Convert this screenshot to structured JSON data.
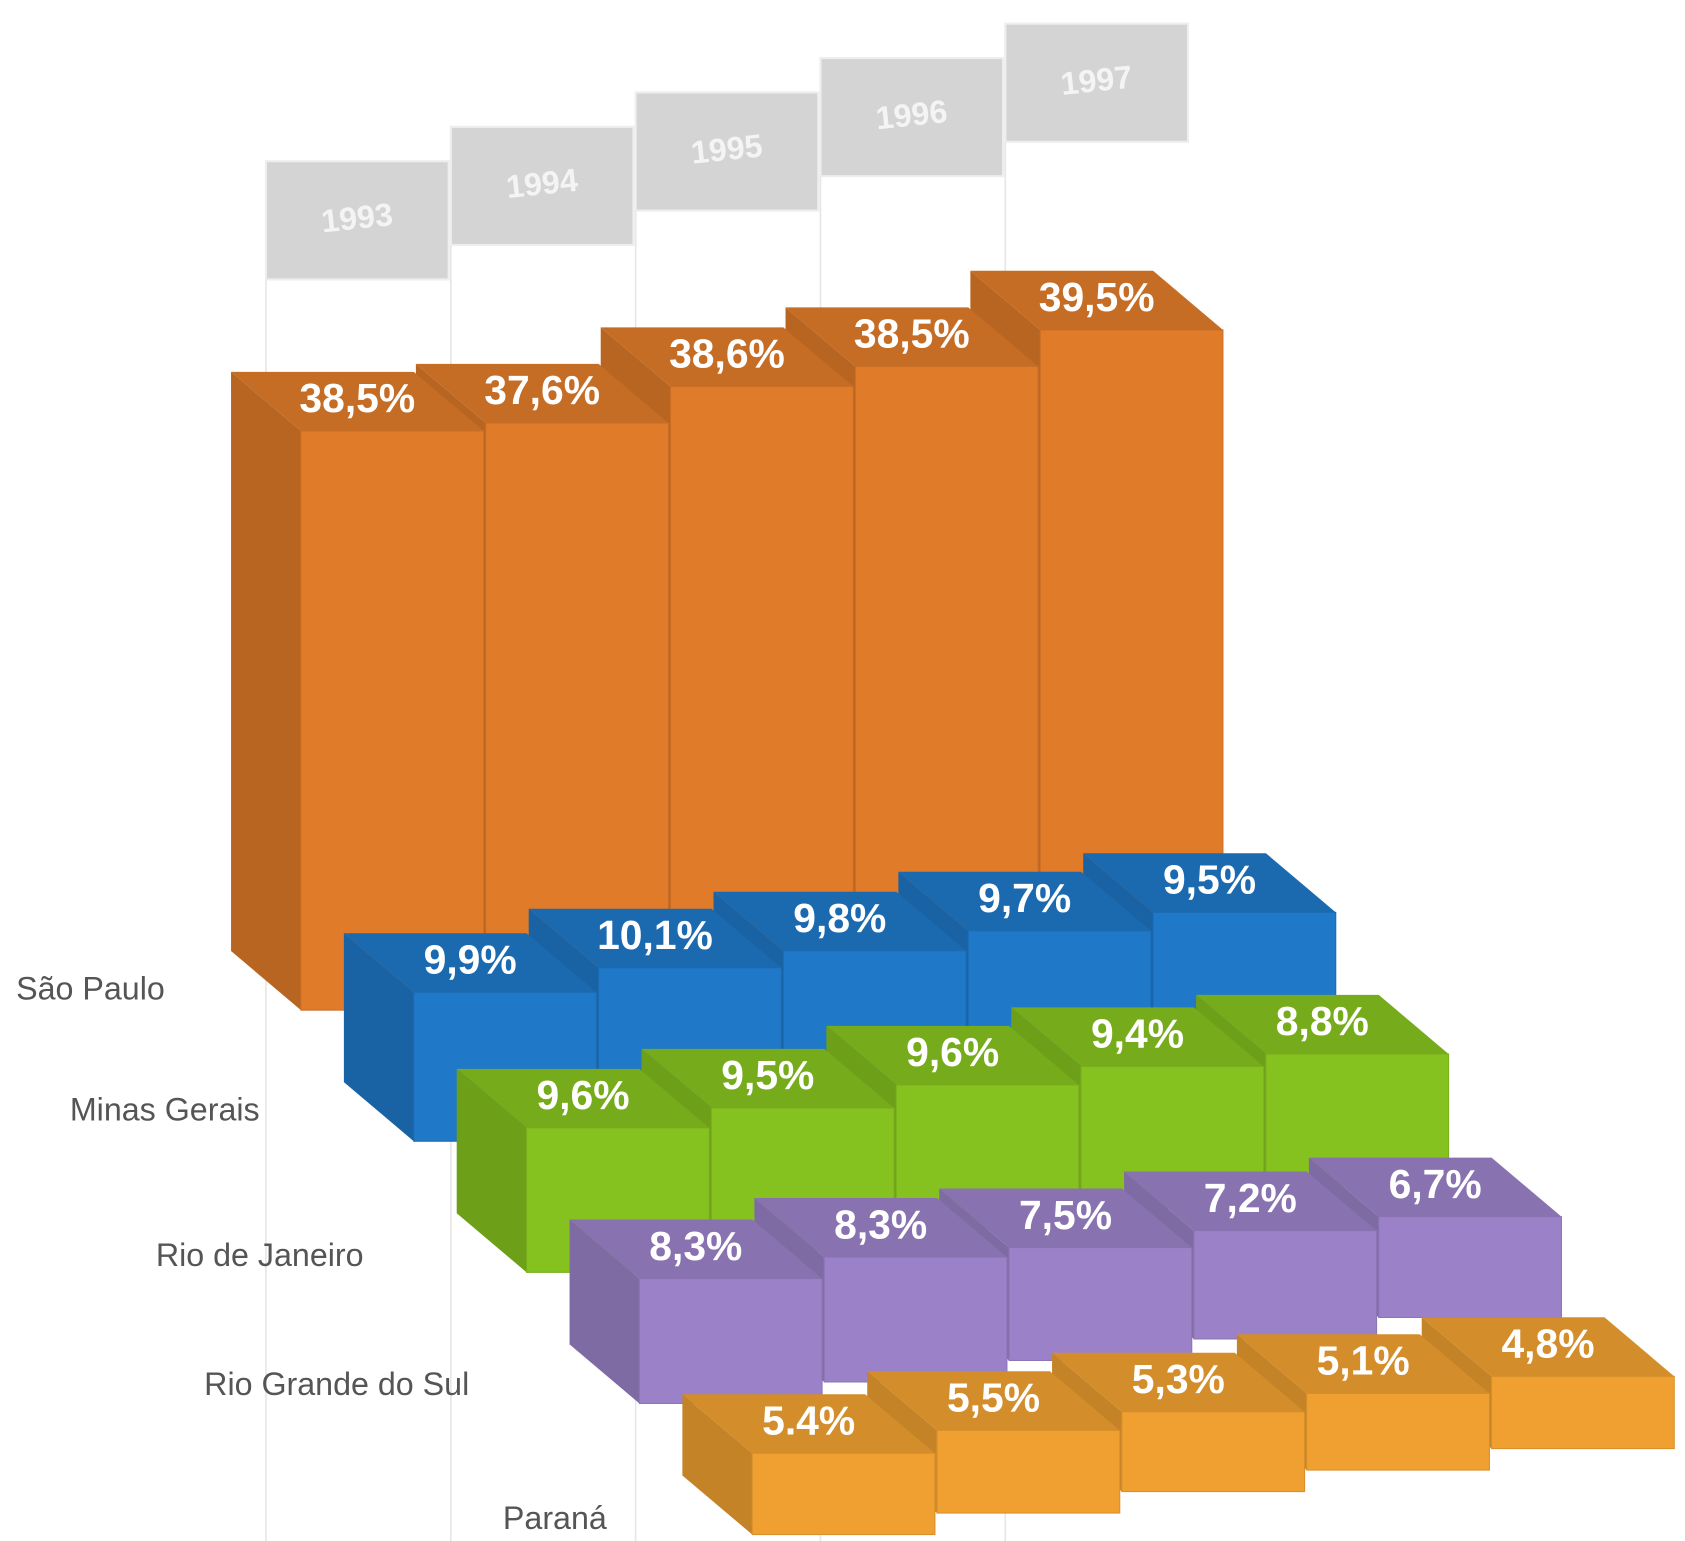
{
  "chart_data": {
    "type": "bar3d",
    "categories": [
      "1993",
      "1994",
      "1995",
      "1996",
      "1997"
    ],
    "series": [
      {
        "name": "São Paulo",
        "color": "#e07b2a",
        "values": [
          38.5,
          37.6,
          38.6,
          38.5,
          39.5
        ],
        "value_labels": [
          "38,5%",
          "37,6%",
          "38,6%",
          "38,5%",
          "39,5%"
        ]
      },
      {
        "name": "Minas Gerais",
        "color": "#1f78c8",
        "values": [
          9.9,
          10.1,
          9.8,
          9.7,
          9.5
        ],
        "value_labels": [
          "9,9%",
          "10,1%",
          "9,8%",
          "9,7%",
          "9,5%"
        ]
      },
      {
        "name": "Rio de Janeiro",
        "color": "#86c21f",
        "values": [
          9.6,
          9.5,
          9.6,
          9.4,
          8.8
        ],
        "value_labels": [
          "9,6%",
          "9,5%",
          "9,6%",
          "9,4%",
          "8,8%"
        ]
      },
      {
        "name": "Rio Grande do Sul",
        "color": "#9b82c8",
        "values": [
          8.3,
          8.3,
          7.5,
          7.2,
          6.7
        ],
        "value_labels": [
          "8,3%",
          "8,3%",
          "7,5%",
          "7,2%",
          "6,7%"
        ]
      },
      {
        "name": "Paraná",
        "color": "#f0a030",
        "values": [
          5.4,
          5.5,
          5.3,
          5.1,
          4.8
        ],
        "value_labels": [
          "5.4%",
          "5,5%",
          "5,3%",
          "5,1%",
          "4,8%"
        ]
      }
    ]
  }
}
